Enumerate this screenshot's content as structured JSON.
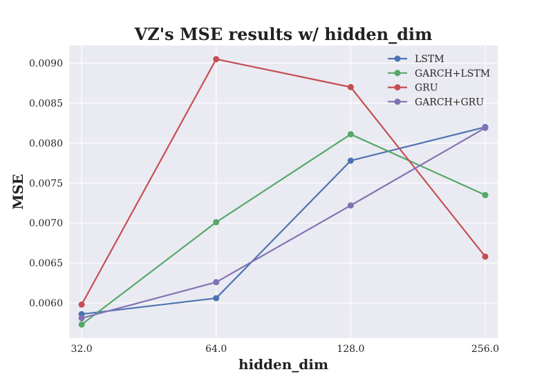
{
  "chart_data": {
    "type": "line",
    "title": "VZ's MSE results w/ hidden_dim",
    "xlabel": "hidden_dim",
    "ylabel": "MSE",
    "x": [
      32,
      64,
      128,
      256
    ],
    "x_tick_labels": [
      "32.0",
      "64.0",
      "128.0",
      "256.0"
    ],
    "x_scale": "log2",
    "xlim": [
      30.0,
      273.0
    ],
    "y_ticks": [
      0.006,
      0.0065,
      0.007,
      0.0075,
      0.008,
      0.0085,
      0.009
    ],
    "y_tick_labels": [
      "0.0060",
      "0.0065",
      "0.0070",
      "0.0075",
      "0.0080",
      "0.0085",
      "0.0090"
    ],
    "ylim": [
      0.00556,
      0.00922
    ],
    "grid": true,
    "legend_position": "top-right",
    "series": [
      {
        "name": "LSTM",
        "color": "#4c72b0",
        "values": [
          0.00586,
          0.00606,
          0.00778,
          0.0082
        ]
      },
      {
        "name": "GARCH+LSTM",
        "color": "#55a868",
        "values": [
          0.00573,
          0.00701,
          0.00811,
          0.00735
        ]
      },
      {
        "name": "GRU",
        "color": "#c44e52",
        "values": [
          0.00598,
          0.00905,
          0.0087,
          0.00658
        ]
      },
      {
        "name": "GARCH+GRU",
        "color": "#8172b3",
        "values": [
          0.00581,
          0.00626,
          0.00722,
          0.00819
        ]
      }
    ]
  }
}
